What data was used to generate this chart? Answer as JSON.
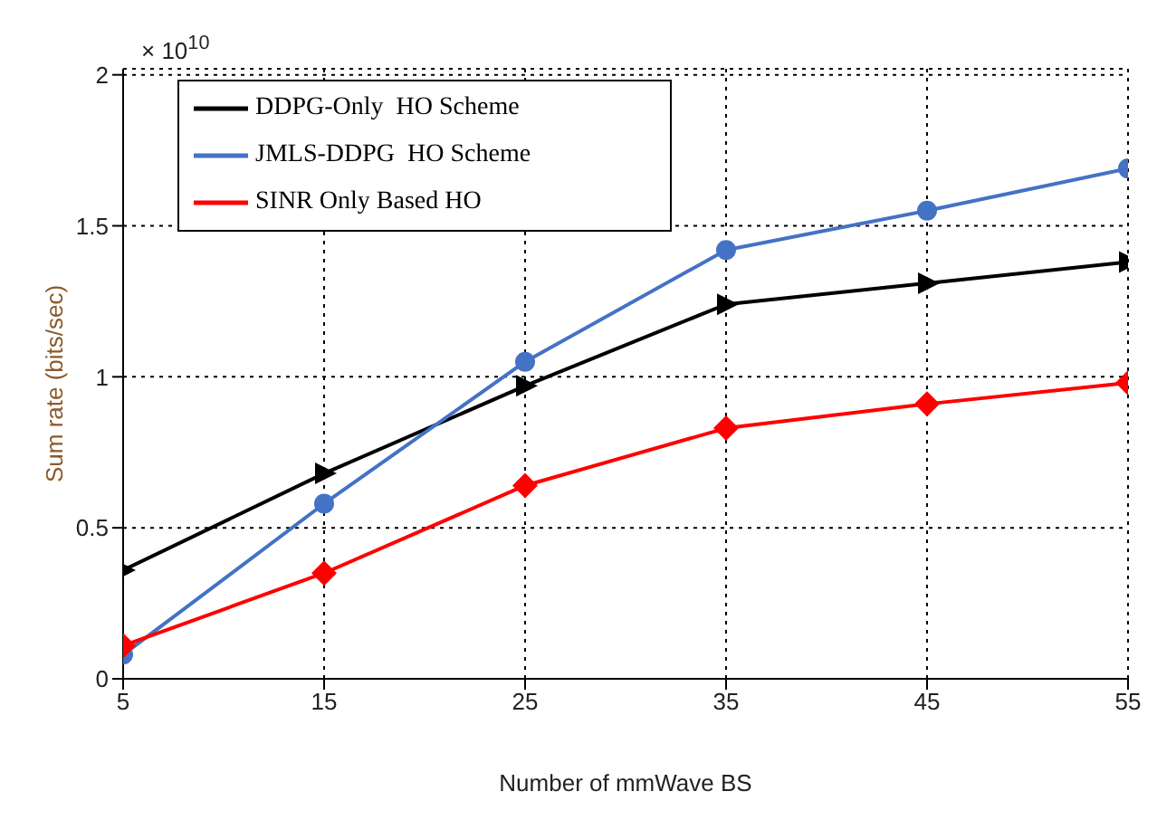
{
  "chart_data": {
    "type": "line",
    "xlabel": "Number of mmWave BS",
    "ylabel": "Sum rate (bits/sec)",
    "annotations": [
      "× 10$^{10}$"
    ],
    "x": [
      5,
      15,
      25,
      35,
      45,
      55
    ],
    "xlim": [
      5,
      55
    ],
    "xticks": [
      5,
      15,
      25,
      35,
      45,
      55
    ],
    "ylim": [
      0,
      2.02
    ],
    "yticks": [
      0,
      0.5,
      1,
      1.5,
      2
    ],
    "grid": true,
    "legend": "top left",
    "line_style": "solid",
    "series": [
      {
        "name": "DDPG-Only  HO Scheme",
        "color": "#000000",
        "marker": "triangle",
        "values": [
          0.36,
          0.68,
          0.97,
          1.24,
          1.31,
          1.38
        ]
      },
      {
        "name": "JMLS-DDPG  HO Scheme",
        "color": "#4472c4",
        "marker": "circle",
        "values": [
          0.08,
          0.58,
          1.05,
          1.42,
          1.55,
          1.69
        ]
      },
      {
        "name": "SINR Only Based HO",
        "color": "#ff0000",
        "marker": "diamond",
        "values": [
          0.11,
          0.35,
          0.64,
          0.83,
          0.91,
          0.98
        ]
      }
    ]
  }
}
